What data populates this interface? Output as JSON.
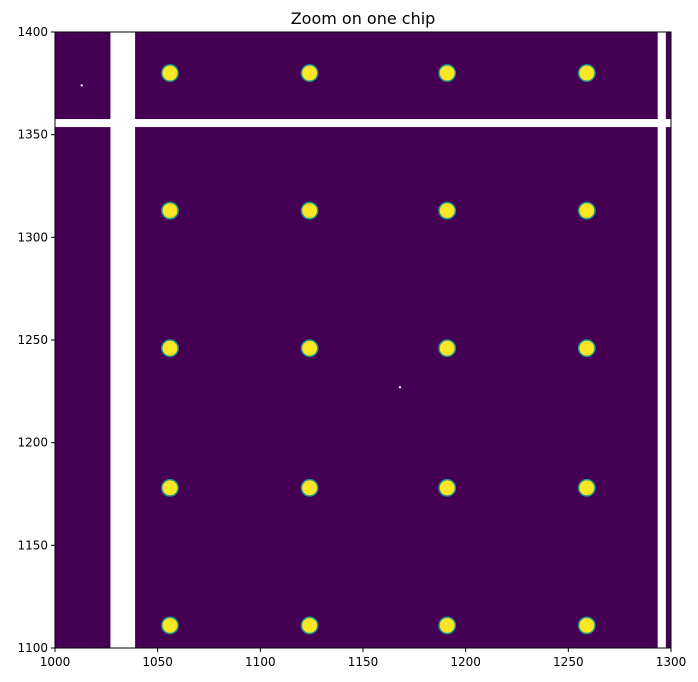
{
  "chart_data": {
    "type": "heatmap",
    "title": "Zoom on one chip",
    "xlabel": "",
    "ylabel": "",
    "xlim": [
      1000,
      1300
    ],
    "ylim": [
      1100,
      1400
    ],
    "xticks": [
      1000,
      1050,
      1100,
      1150,
      1200,
      1250,
      1300
    ],
    "yticks": [
      1100,
      1150,
      1200,
      1250,
      1300,
      1350,
      1400
    ],
    "colormap": "viridis",
    "colors": {
      "background": "#440154",
      "spot": "#fde725",
      "spot_edge": "#21918c",
      "gap": "#ffffff"
    },
    "grid": false,
    "spots": {
      "x": [
        1056,
        1124,
        1191,
        1259
      ],
      "y": [
        1380,
        1313,
        1246,
        1178,
        1111
      ],
      "radius": 4
    },
    "gaps": [
      {
        "orientation": "vertical",
        "from": 1027,
        "to": 1039
      },
      {
        "orientation": "vertical",
        "from": 1293.5,
        "to": 1297.5
      },
      {
        "orientation": "horizontal",
        "from": 1353.7,
        "to": 1357.6
      }
    ],
    "hot_pixels": [
      {
        "x": 1013,
        "y": 1374
      },
      {
        "x": 1168,
        "y": 1227
      }
    ]
  }
}
